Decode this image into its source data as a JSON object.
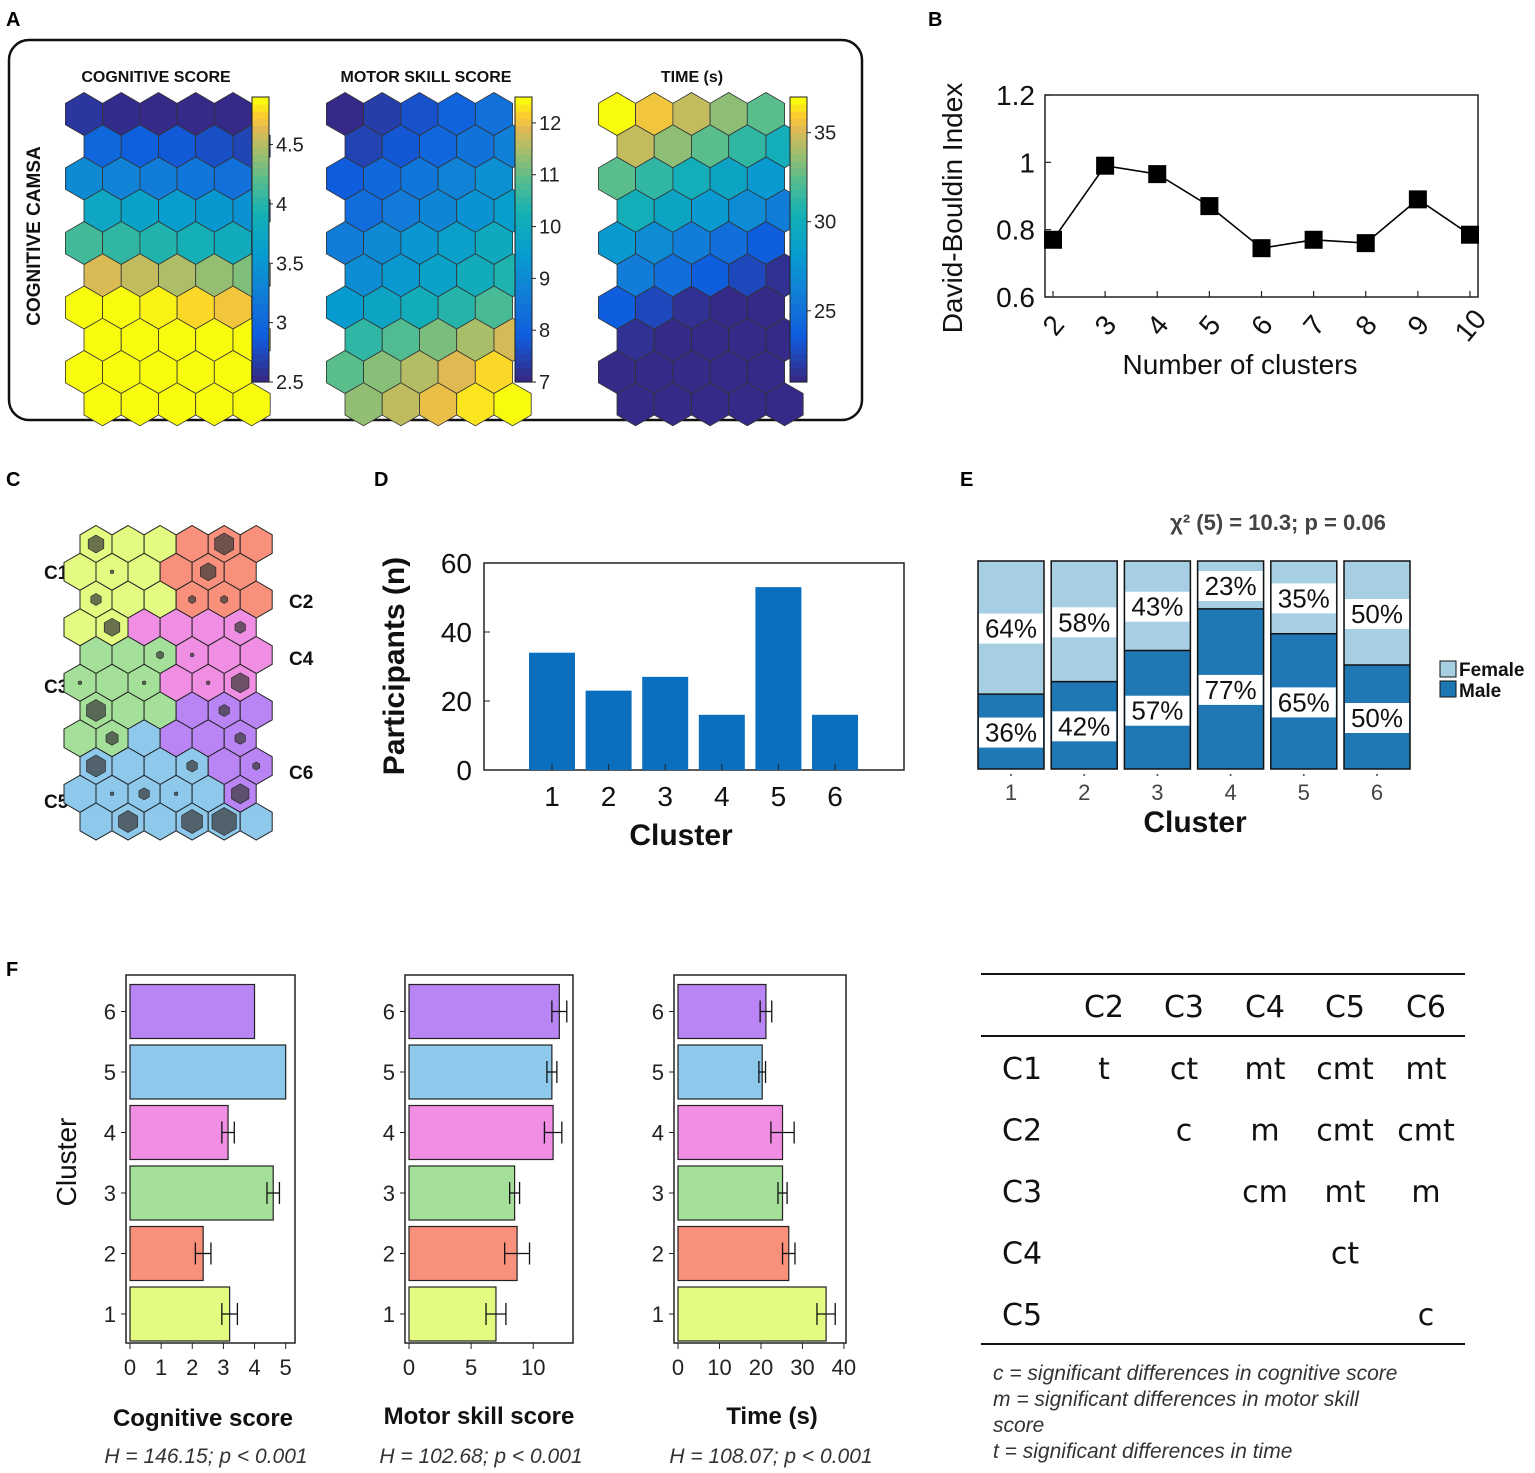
{
  "panels": {
    "A": "A",
    "B": "B",
    "C": "C",
    "D": "D",
    "E": "E",
    "F": "F"
  },
  "panel_a": {
    "row_label": "COGNITIVE CAMSA",
    "maps": [
      {
        "title": "COGNITIVE SCORE",
        "ticks": [
          "4.5",
          "4",
          "3.5",
          "3",
          "2.5"
        ],
        "range": [
          2.5,
          4.9
        ]
      },
      {
        "title": "MOTOR SKILL SCORE",
        "ticks": [
          "12",
          "11",
          "10",
          "9",
          "8",
          "7"
        ],
        "range": [
          7,
          12.5
        ]
      },
      {
        "title": "TIME (s)",
        "ticks": [
          "35",
          "30",
          "25"
        ],
        "range": [
          21,
          37
        ]
      }
    ]
  },
  "panel_c": {
    "labels": [
      "C1",
      "C2",
      "C3",
      "C4",
      "C5",
      "C6"
    ],
    "colors": {
      "C1": "#e2fb80",
      "C2": "#f8907c",
      "C3": "#a5e09a",
      "C4": "#ef8ee2",
      "C5": "#8ec9ec",
      "C6": "#b985f5"
    }
  },
  "panel_e_title": "χ² (5) = 10.3; p = 0.06",
  "panel_f_stats": [
    "H = 146.15; p < 0.001",
    "H =  102.68; p < 0.001",
    "H = 108.07; p < 0.001"
  ],
  "table": {
    "columns": [
      "C2",
      "C3",
      "C4",
      "C5",
      "C6"
    ],
    "rows": [
      {
        "label": "C1",
        "cells": [
          "t",
          "ct",
          "mt",
          "cmt",
          "mt"
        ]
      },
      {
        "label": "C2",
        "cells": [
          "",
          "c",
          "m",
          "cmt",
          "cmt"
        ]
      },
      {
        "label": "C3",
        "cells": [
          "",
          "",
          "cm",
          "mt",
          "m"
        ]
      },
      {
        "label": "C4",
        "cells": [
          "",
          "",
          "",
          "ct",
          ""
        ]
      },
      {
        "label": "C5",
        "cells": [
          "",
          "",
          "",
          "",
          "c"
        ]
      }
    ],
    "notes": [
      "c = significant differences in cognitive score",
      "m = significant differences in motor skill",
      "score",
      "t = significant differences in time"
    ]
  },
  "chart_data": [
    {
      "id": "B",
      "type": "line",
      "xlabel": "Number of clusters",
      "ylabel": "David-Bouldin Index",
      "x": [
        2,
        3,
        4,
        5,
        6,
        7,
        8,
        9,
        10
      ],
      "y": [
        0.77,
        0.99,
        0.965,
        0.87,
        0.745,
        0.77,
        0.76,
        0.89,
        0.785
      ],
      "ylim": [
        0.6,
        1.2
      ],
      "yticks": [
        "0.6",
        "0.8",
        "1",
        "1.2"
      ],
      "xticks": [
        "2",
        "3",
        "4",
        "5",
        "6",
        "7",
        "8",
        "9",
        "10"
      ]
    },
    {
      "id": "D",
      "type": "bar",
      "xlabel": "Cluster",
      "ylabel": "Participants (n)",
      "categories": [
        "1",
        "2",
        "3",
        "4",
        "5",
        "6"
      ],
      "values": [
        34,
        23,
        27,
        16,
        53,
        16
      ],
      "ylim": [
        0,
        60
      ],
      "yticks": [
        "0",
        "20",
        "40",
        "60"
      ],
      "color": "#0a6fbf"
    },
    {
      "id": "E",
      "type": "bar",
      "stacked": true,
      "xlabel": "Cluster",
      "categories": [
        "1",
        "2",
        "3",
        "4",
        "5",
        "6"
      ],
      "series": [
        {
          "name": "Female",
          "values": [
            64,
            58,
            43,
            23,
            35,
            50
          ],
          "labels": [
            "64%",
            "58%",
            "43%",
            "23%",
            "35%",
            "50%"
          ],
          "color": "#a6cfe4"
        },
        {
          "name": "Male",
          "values": [
            36,
            42,
            57,
            77,
            65,
            50
          ],
          "labels": [
            "36%",
            "42%",
            "57%",
            "77%",
            "65%",
            "50%"
          ],
          "color": "#1f78b4"
        }
      ]
    },
    {
      "id": "F1",
      "type": "bar",
      "orientation": "horizontal",
      "xlabel": "Cognitive score",
      "ylabel": "Cluster",
      "categories": [
        "1",
        "2",
        "3",
        "4",
        "5",
        "6"
      ],
      "values": [
        3.2,
        2.35,
        4.6,
        3.15,
        5.0,
        4.0
      ],
      "errors": [
        0.25,
        0.25,
        0.2,
        0.2,
        0.0,
        0.0
      ],
      "xlim": [
        0,
        5.3
      ],
      "xticks": [
        "0",
        "1",
        "2",
        "3",
        "4",
        "5"
      ],
      "colors": [
        "#e2fb80",
        "#f8907c",
        "#a5e09a",
        "#ef8ee2",
        "#8ec9ec",
        "#b985f5"
      ]
    },
    {
      "id": "F2",
      "type": "bar",
      "orientation": "horizontal",
      "xlabel": "Motor skill score",
      "categories": [
        "1",
        "2",
        "3",
        "4",
        "5",
        "6"
      ],
      "values": [
        7.0,
        8.7,
        8.5,
        11.6,
        11.5,
        12.1
      ],
      "errors": [
        0.8,
        1.0,
        0.4,
        0.7,
        0.4,
        0.6
      ],
      "xlim": [
        0,
        13.2
      ],
      "xticks": [
        "0",
        "5",
        "10"
      ],
      "colors": [
        "#e2fb80",
        "#f8907c",
        "#a5e09a",
        "#ef8ee2",
        "#8ec9ec",
        "#b985f5"
      ]
    },
    {
      "id": "F3",
      "type": "bar",
      "orientation": "horizontal",
      "xlabel": "Time (s)",
      "categories": [
        "1",
        "2",
        "3",
        "4",
        "5",
        "6"
      ],
      "values": [
        35.7,
        26.7,
        25.2,
        25.2,
        20.3,
        21.2
      ],
      "errors": [
        2.2,
        1.5,
        1.1,
        2.8,
        0.8,
        1.4
      ],
      "xlim": [
        0,
        40.5
      ],
      "xticks": [
        "0",
        "10",
        "20",
        "30",
        "40"
      ],
      "colors": [
        "#e2fb80",
        "#f8907c",
        "#a5e09a",
        "#ef8ee2",
        "#8ec9ec",
        "#b985f5"
      ]
    }
  ]
}
